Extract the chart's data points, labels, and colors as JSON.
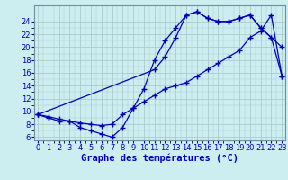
{
  "line1_x": [
    0,
    1,
    2,
    3,
    4,
    5,
    6,
    7,
    8,
    9,
    10,
    11,
    12,
    13,
    14,
    15,
    16,
    17,
    18,
    19,
    20,
    21,
    22,
    23
  ],
  "line1_y": [
    9.5,
    9.0,
    8.5,
    8.5,
    7.5,
    7.0,
    6.5,
    6.0,
    7.5,
    10.5,
    13.5,
    18.0,
    21.0,
    23.0,
    25.0,
    25.5,
    24.5,
    24.0,
    24.0,
    24.5,
    25.0,
    23.0,
    21.5,
    20.0
  ],
  "line2_x": [
    0,
    1,
    2,
    3,
    4,
    5,
    6,
    7,
    8,
    9,
    10,
    11,
    12,
    13,
    14,
    15,
    16,
    17,
    18,
    19,
    20,
    21,
    22,
    23
  ],
  "line2_y": [
    9.5,
    9.2,
    8.8,
    8.5,
    8.2,
    8.0,
    7.8,
    8.0,
    9.5,
    10.5,
    11.5,
    12.5,
    13.5,
    14.0,
    14.5,
    15.5,
    16.5,
    17.5,
    18.5,
    19.5,
    21.5,
    22.5,
    25.0,
    15.5
  ],
  "line3_x": [
    0,
    11,
    12,
    13,
    14,
    15,
    16,
    17,
    18,
    19,
    20,
    21,
    22,
    23
  ],
  "line3_y": [
    9.5,
    16.5,
    18.5,
    21.5,
    25.0,
    25.5,
    24.5,
    24.0,
    24.0,
    24.5,
    25.0,
    23.0,
    21.5,
    15.5
  ],
  "line_color": "#0000bb",
  "bg_color": "#cceef0",
  "grid_color": "#aacccc",
  "xlabel": "Graphe des températures (°C)",
  "xtick_labels": [
    "0",
    "1",
    "2",
    "3",
    "4",
    "5",
    "6",
    "7",
    "8",
    "9",
    "10",
    "11",
    "12",
    "13",
    "14",
    "15",
    "16",
    "17",
    "18",
    "19",
    "20",
    "21",
    "22",
    "23"
  ],
  "xticks": [
    0,
    1,
    2,
    3,
    4,
    5,
    6,
    7,
    8,
    9,
    10,
    11,
    12,
    13,
    14,
    15,
    16,
    17,
    18,
    19,
    20,
    21,
    22,
    23
  ],
  "yticks": [
    6,
    8,
    10,
    12,
    14,
    16,
    18,
    20,
    22,
    24
  ],
  "xlim": [
    -0.3,
    23.3
  ],
  "ylim": [
    5.5,
    26.5
  ],
  "xlabel_fontsize": 7.5,
  "tick_fontsize": 6.0
}
